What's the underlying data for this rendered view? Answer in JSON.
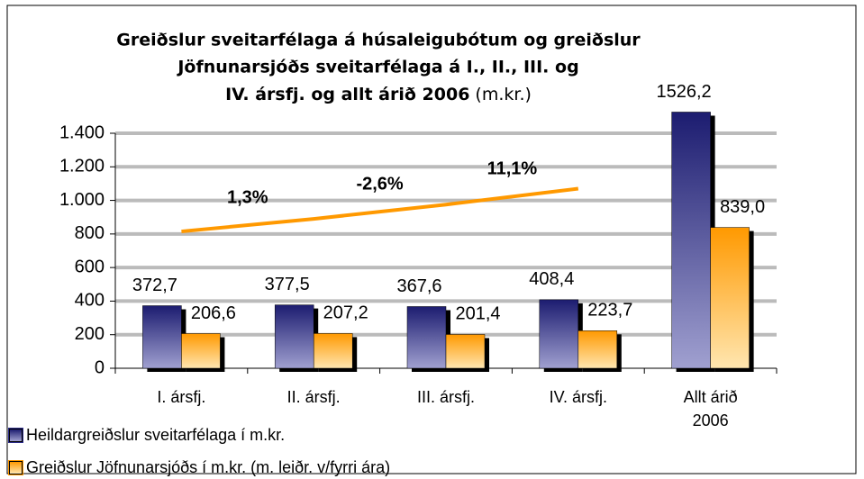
{
  "chart_data": {
    "type": "bar",
    "title": [
      "Greiðslur sveitarfélaga á húsaleigubótum og greiðslur",
      "Jöfnunarsjóðs sveitarfélaga á I., II., III. og",
      "IV. ársfj. og allt árið 2006"
    ],
    "subtitle": "(m.kr.)",
    "categories": [
      "I. ársfj.",
      "II. ársfj.",
      "III. ársfj.",
      "IV. ársfj.",
      "Allt árið 2006"
    ],
    "series": [
      {
        "name": "Heildargreiðslur sveitarfélaga í m.kr.",
        "color": "#2a2a8a",
        "values": [
          372.7,
          377.5,
          367.6,
          408.4,
          1526.2
        ],
        "value_labels": [
          "372,7",
          "377,5",
          "367,6",
          "408,4",
          "1526,2"
        ]
      },
      {
        "name": "Greiðslur Jöfnunarsjóðs í m.kr. (m. leiðr. v/fyrri ára)",
        "color": "#ff9900",
        "values": [
          206.6,
          207.2,
          201.4,
          223.7,
          839.0
        ],
        "value_labels": [
          "206,6",
          "207,2",
          "201,4",
          "223,7",
          "839,0"
        ]
      }
    ],
    "line": {
      "color": "#ff9900",
      "values": [
        815,
        890,
        975,
        1070
      ]
    },
    "annotations": [
      "1,3%",
      "-2,6%",
      "11,1%"
    ],
    "ylim": [
      0,
      1400
    ],
    "yticks": [
      0,
      200,
      400,
      600,
      800,
      {
        "value": 1000,
        "label": "1.000"
      },
      {
        "value": 1200,
        "label": "1.200"
      },
      {
        "value": 1400,
        "label": "1.400"
      }
    ],
    "grid": true,
    "legend": "bottom-left"
  }
}
